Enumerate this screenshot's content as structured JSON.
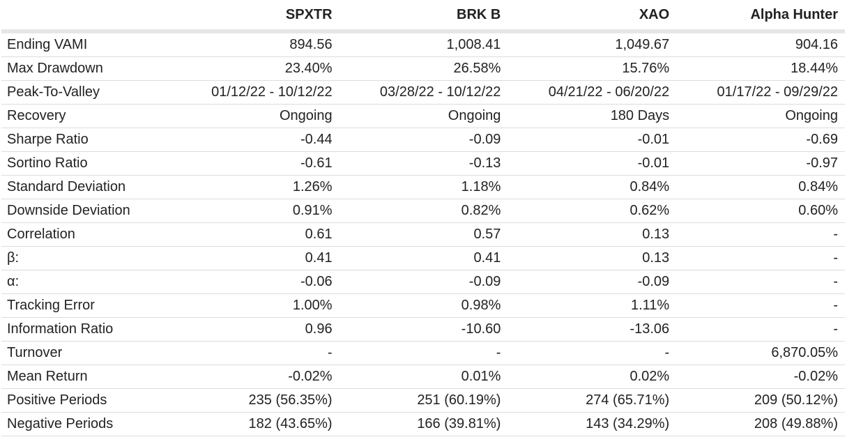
{
  "columns": [
    "SPXTR",
    "BRK B",
    "XAO",
    "Alpha Hunter"
  ],
  "rows": [
    {
      "label": "Ending VAMI",
      "values": [
        "894.56",
        "1,008.41",
        "1,049.67",
        "904.16"
      ]
    },
    {
      "label": "Max Drawdown",
      "values": [
        "23.40%",
        "26.58%",
        "15.76%",
        "18.44%"
      ]
    },
    {
      "label": "Peak-To-Valley",
      "values": [
        "01/12/22 - 10/12/22",
        "03/28/22 - 10/12/22",
        "04/21/22 - 06/20/22",
        "01/17/22 - 09/29/22"
      ]
    },
    {
      "label": "Recovery",
      "values": [
        "Ongoing",
        "Ongoing",
        "180 Days",
        "Ongoing"
      ]
    },
    {
      "label": "Sharpe Ratio",
      "values": [
        "-0.44",
        "-0.09",
        "-0.01",
        "-0.69"
      ]
    },
    {
      "label": "Sortino Ratio",
      "values": [
        "-0.61",
        "-0.13",
        "-0.01",
        "-0.97"
      ]
    },
    {
      "label": "Standard Deviation",
      "values": [
        "1.26%",
        "1.18%",
        "0.84%",
        "0.84%"
      ]
    },
    {
      "label": "Downside Deviation",
      "values": [
        "0.91%",
        "0.82%",
        "0.62%",
        "0.60%"
      ]
    },
    {
      "label": "Correlation",
      "values": [
        "0.61",
        "0.57",
        "0.13",
        "-"
      ]
    },
    {
      "label": "β:",
      "values": [
        "0.41",
        "0.41",
        "0.13",
        "-"
      ]
    },
    {
      "label": "α:",
      "values": [
        "-0.06",
        "-0.09",
        "-0.09",
        "-"
      ]
    },
    {
      "label": "Tracking Error",
      "values": [
        "1.00%",
        "0.98%",
        "1.11%",
        "-"
      ]
    },
    {
      "label": "Information Ratio",
      "values": [
        "0.96",
        "-10.60",
        "-13.06",
        "-"
      ]
    },
    {
      "label": "Turnover",
      "values": [
        "-",
        "-",
        "-",
        "6,870.05%"
      ]
    },
    {
      "label": "Mean Return",
      "values": [
        "-0.02%",
        "0.01%",
        "0.02%",
        "-0.02%"
      ]
    },
    {
      "label": "Positive Periods",
      "values": [
        "235 (56.35%)",
        "251 (60.19%)",
        "274 (65.71%)",
        "209 (50.12%)"
      ]
    },
    {
      "label": "Negative Periods",
      "values": [
        "182 (43.65%)",
        "166 (39.81%)",
        "143 (34.29%)",
        "208 (49.88%)"
      ]
    }
  ]
}
